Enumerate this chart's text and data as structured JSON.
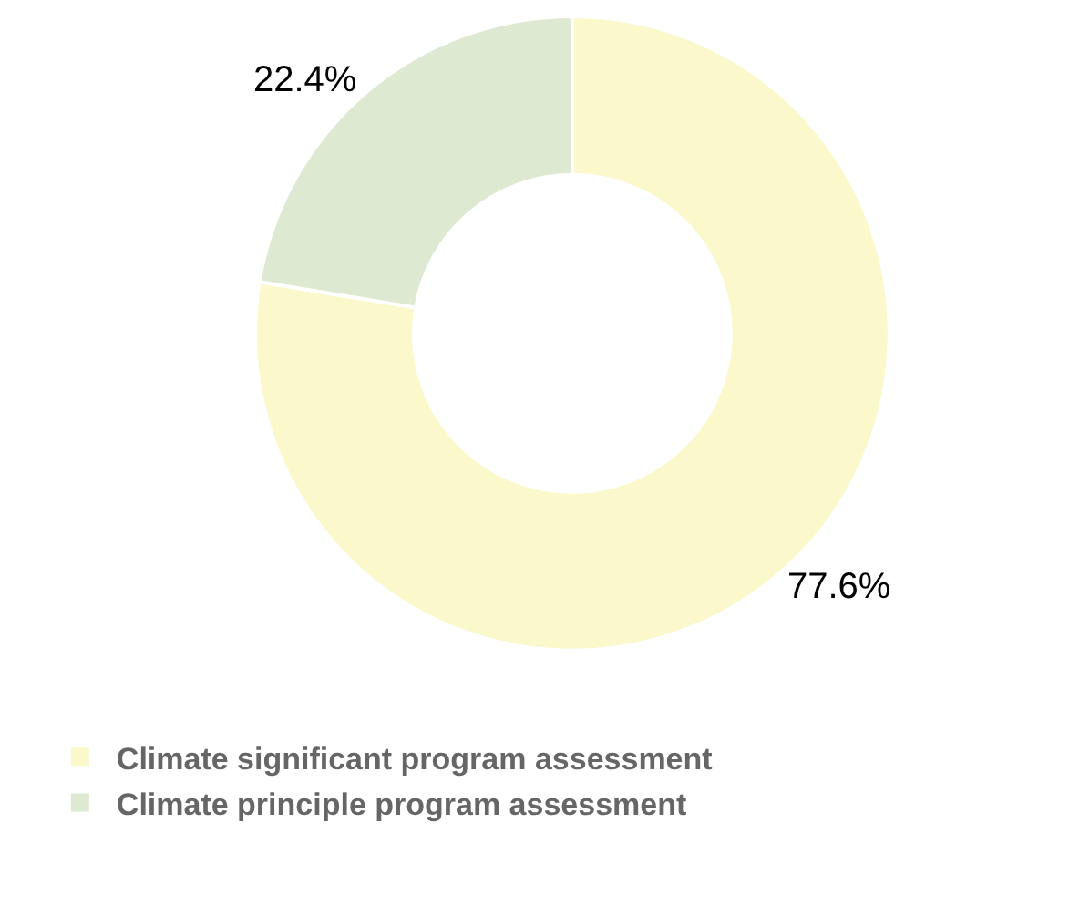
{
  "chart_data": {
    "type": "donut",
    "categories": [
      "Climate significant program assessment",
      "Climate principle program assessment"
    ],
    "values": [
      77.6,
      22.4
    ],
    "colors": [
      "#fbf8cc",
      "#dde9d0"
    ],
    "value_labels": [
      "77.6%",
      "22.4%"
    ],
    "legend": "bottom left"
  }
}
